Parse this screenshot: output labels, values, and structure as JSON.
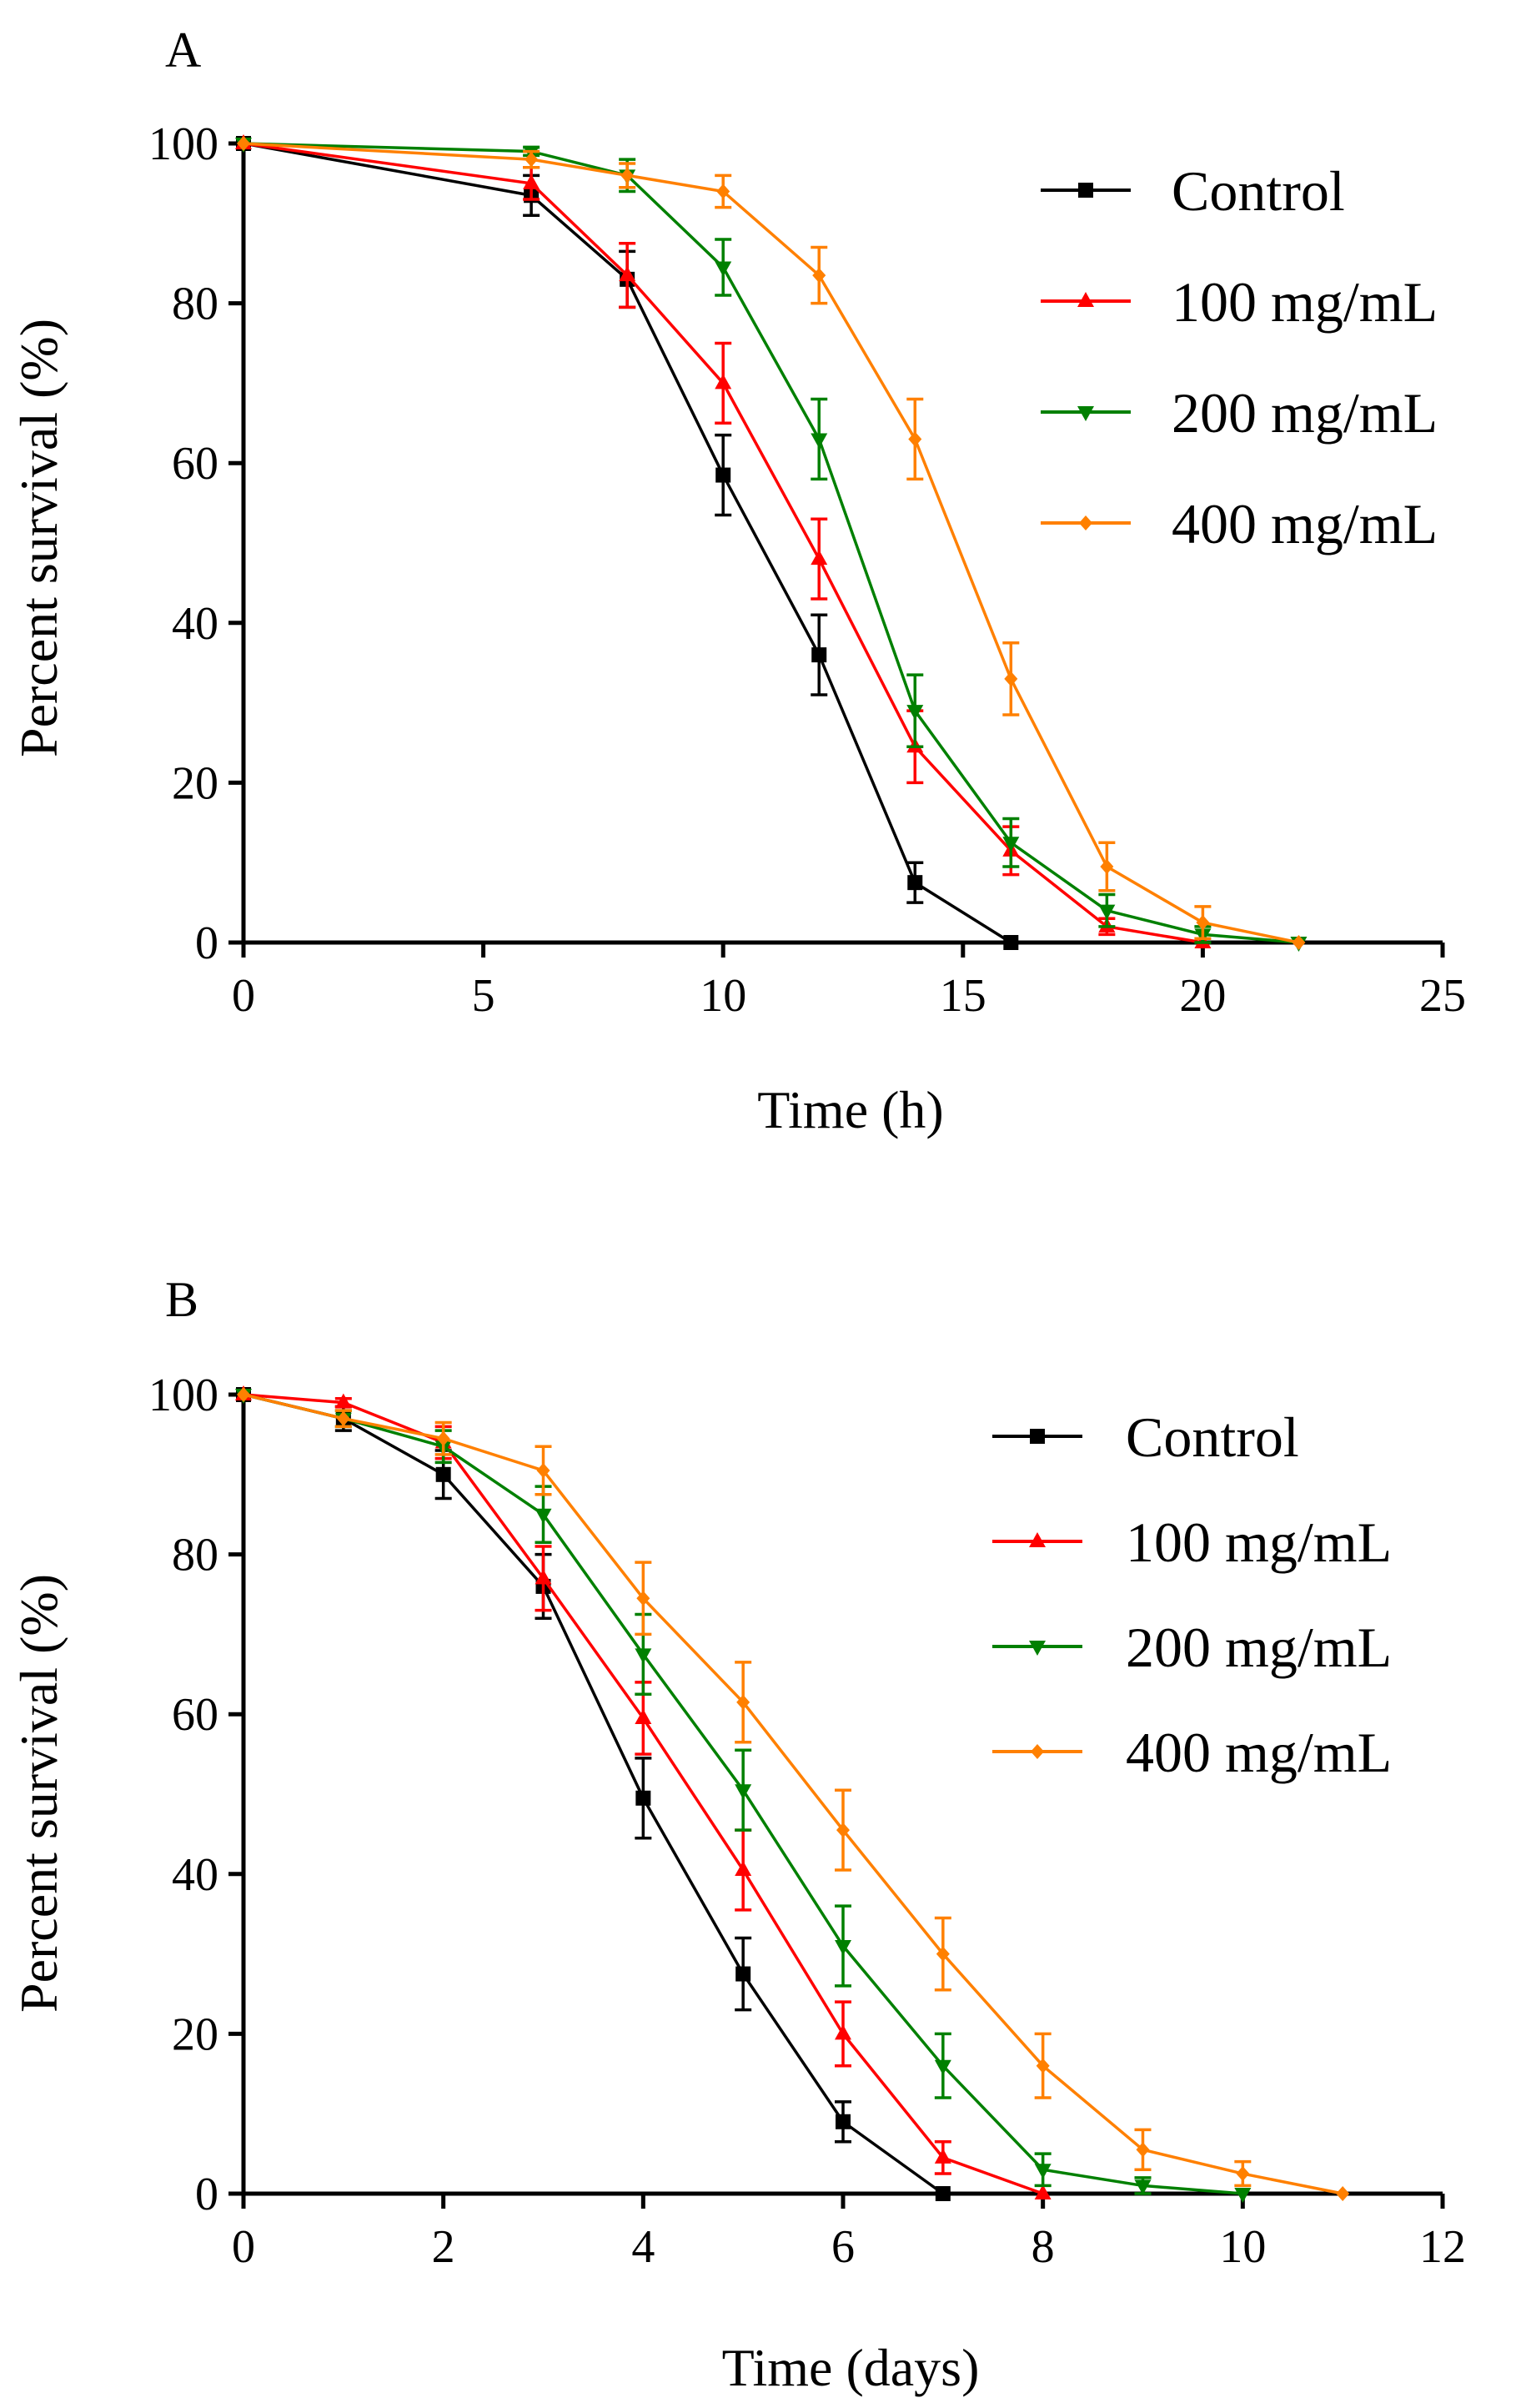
{
  "chart_data": [
    {
      "type": "line",
      "panel_label": "A",
      "title": "",
      "xlabel": "Time (h)",
      "ylabel": "Percent survival (%)",
      "xlim": [
        0,
        25
      ],
      "ylim": [
        0,
        100
      ],
      "xticks": [
        0,
        5,
        10,
        15,
        20,
        25
      ],
      "yticks": [
        0,
        20,
        40,
        60,
        80,
        100
      ],
      "grid": false,
      "legend_position": "top-right",
      "series": [
        {
          "name": "Control",
          "color": "#000000",
          "marker": "square",
          "x": [
            0,
            6,
            8,
            10,
            12,
            14,
            16
          ],
          "y": [
            100,
            93.5,
            83,
            58.5,
            36,
            7.5,
            0
          ],
          "err": [
            0,
            2.5,
            3.5,
            5,
            5,
            2.5,
            0
          ]
        },
        {
          "name": "100 mg/mL",
          "color": "#ff0000",
          "marker": "triangle-up",
          "x": [
            0,
            6,
            8,
            10,
            12,
            14,
            16,
            18,
            20
          ],
          "y": [
            100,
            95,
            83.5,
            70,
            48,
            24.5,
            11.5,
            2,
            0
          ],
          "err": [
            0,
            2,
            4,
            5,
            5,
            4.5,
            3,
            1,
            0
          ]
        },
        {
          "name": "200 mg/mL",
          "color": "#008000",
          "marker": "triangle-down",
          "x": [
            0,
            6,
            8,
            10,
            12,
            14,
            16,
            18,
            20,
            22
          ],
          "y": [
            100,
            99,
            96,
            84.5,
            63,
            29,
            12.5,
            4,
            1,
            0
          ],
          "err": [
            0,
            0.5,
            2,
            3.5,
            5,
            4.5,
            3,
            2,
            1,
            0
          ]
        },
        {
          "name": "400 mg/mL",
          "color": "#ff8000",
          "marker": "diamond",
          "x": [
            0,
            6,
            8,
            10,
            12,
            14,
            16,
            18,
            20,
            22
          ],
          "y": [
            100,
            98,
            96,
            94,
            83.5,
            63,
            33,
            9.5,
            2.5,
            0
          ],
          "err": [
            0,
            1,
            1.5,
            2,
            3.5,
            5,
            4.5,
            3,
            2,
            0
          ]
        }
      ]
    },
    {
      "type": "line",
      "panel_label": "B",
      "title": "",
      "xlabel": "Time (days)",
      "ylabel": "Percent survival (%)",
      "xlim": [
        0,
        12
      ],
      "ylim": [
        0,
        100
      ],
      "xticks": [
        0,
        2,
        4,
        6,
        8,
        10,
        12
      ],
      "yticks": [
        0,
        20,
        40,
        60,
        80,
        100
      ],
      "grid": false,
      "legend_position": "top-right",
      "series": [
        {
          "name": "Control",
          "color": "#000000",
          "marker": "square",
          "x": [
            0,
            1,
            2,
            3,
            4,
            5,
            6,
            7
          ],
          "y": [
            100,
            97,
            90,
            76,
            49.5,
            27.5,
            9,
            0
          ],
          "err": [
            0,
            1.5,
            3,
            4,
            5,
            4.5,
            2.5,
            0
          ]
        },
        {
          "name": "100 mg/mL",
          "color": "#ff0000",
          "marker": "triangle-up",
          "x": [
            0,
            1,
            2,
            3,
            4,
            5,
            6,
            7,
            8
          ],
          "y": [
            100,
            99,
            94,
            77,
            59.5,
            40.5,
            20,
            4.5,
            0
          ],
          "err": [
            0,
            0.5,
            2,
            4,
            4.5,
            5,
            4,
            2,
            0
          ]
        },
        {
          "name": "200 mg/mL",
          "color": "#008000",
          "marker": "triangle-down",
          "x": [
            0,
            1,
            2,
            3,
            4,
            5,
            6,
            7,
            8,
            9,
            10
          ],
          "y": [
            100,
            97,
            93.5,
            85,
            67.5,
            50.5,
            31,
            16,
            3,
            1,
            0
          ],
          "err": [
            0,
            1,
            2,
            3.5,
            5,
            5,
            5,
            4,
            2,
            1,
            0
          ]
        },
        {
          "name": "400 mg/mL",
          "color": "#ff8000",
          "marker": "diamond",
          "x": [
            0,
            1,
            2,
            3,
            4,
            5,
            6,
            7,
            8,
            9,
            10,
            11
          ],
          "y": [
            100,
            97,
            94.5,
            90.5,
            74.5,
            61.5,
            45.5,
            30,
            16,
            5.5,
            2.5,
            0
          ],
          "err": [
            0,
            1,
            2,
            3,
            4.5,
            5,
            5,
            4.5,
            4,
            2.5,
            1.5,
            0
          ]
        }
      ]
    }
  ]
}
